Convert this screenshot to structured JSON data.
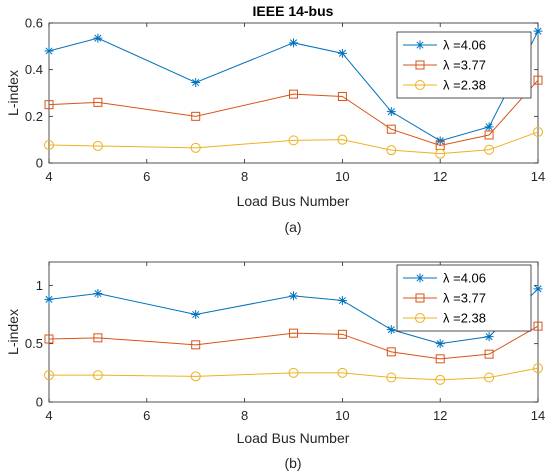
{
  "chart_data": [
    {
      "type": "line",
      "title": "IEEE 14-bus",
      "xlabel": "Load Bus Number",
      "ylabel": "L-index",
      "caption": "(a)",
      "x": [
        4,
        5,
        7,
        9,
        10,
        11,
        12,
        13,
        14
      ],
      "xlim": [
        4,
        14
      ],
      "ylim": [
        0,
        0.6
      ],
      "xticks": [
        "4",
        "6",
        "8",
        "10",
        "12",
        "14"
      ],
      "yticks": [
        "0",
        "0.2",
        "0.4",
        "0.6"
      ],
      "grid": false,
      "legend": "top-right",
      "series": [
        {
          "name": "λ =4.06",
          "color": "#0072BD",
          "marker": "asterisk",
          "values": [
            0.48,
            0.535,
            0.345,
            0.515,
            0.47,
            0.22,
            0.095,
            0.155,
            0.565
          ]
        },
        {
          "name": "λ =3.77",
          "color": "#D95319",
          "marker": "square",
          "values": [
            0.25,
            0.26,
            0.2,
            0.295,
            0.285,
            0.145,
            0.075,
            0.12,
            0.355
          ]
        },
        {
          "name": "λ =2.38",
          "color": "#EDB120",
          "marker": "circle",
          "values": [
            0.077,
            0.073,
            0.065,
            0.097,
            0.1,
            0.055,
            0.04,
            0.057,
            0.133
          ]
        }
      ]
    },
    {
      "type": "line",
      "title": "",
      "xlabel": "Load Bus Number",
      "ylabel": "L-index",
      "caption": "(b)",
      "x": [
        4,
        5,
        7,
        9,
        10,
        11,
        12,
        13,
        14
      ],
      "xlim": [
        4,
        14
      ],
      "ylim": [
        0,
        1.2
      ],
      "xticks": [
        "4",
        "6",
        "8",
        "10",
        "12",
        "14"
      ],
      "yticks": [
        "0",
        "0.5",
        "1"
      ],
      "grid": false,
      "legend": "top-right",
      "series": [
        {
          "name": "λ =4.06",
          "color": "#0072BD",
          "marker": "asterisk",
          "values": [
            0.88,
            0.93,
            0.75,
            0.91,
            0.87,
            0.62,
            0.5,
            0.56,
            0.97
          ]
        },
        {
          "name": "λ =3.77",
          "color": "#D95319",
          "marker": "square",
          "values": [
            0.54,
            0.55,
            0.49,
            0.59,
            0.58,
            0.43,
            0.37,
            0.41,
            0.65
          ]
        },
        {
          "name": "λ =2.38",
          "color": "#EDB120",
          "marker": "circle",
          "values": [
            0.23,
            0.23,
            0.22,
            0.25,
            0.25,
            0.21,
            0.19,
            0.21,
            0.29
          ]
        }
      ]
    }
  ]
}
